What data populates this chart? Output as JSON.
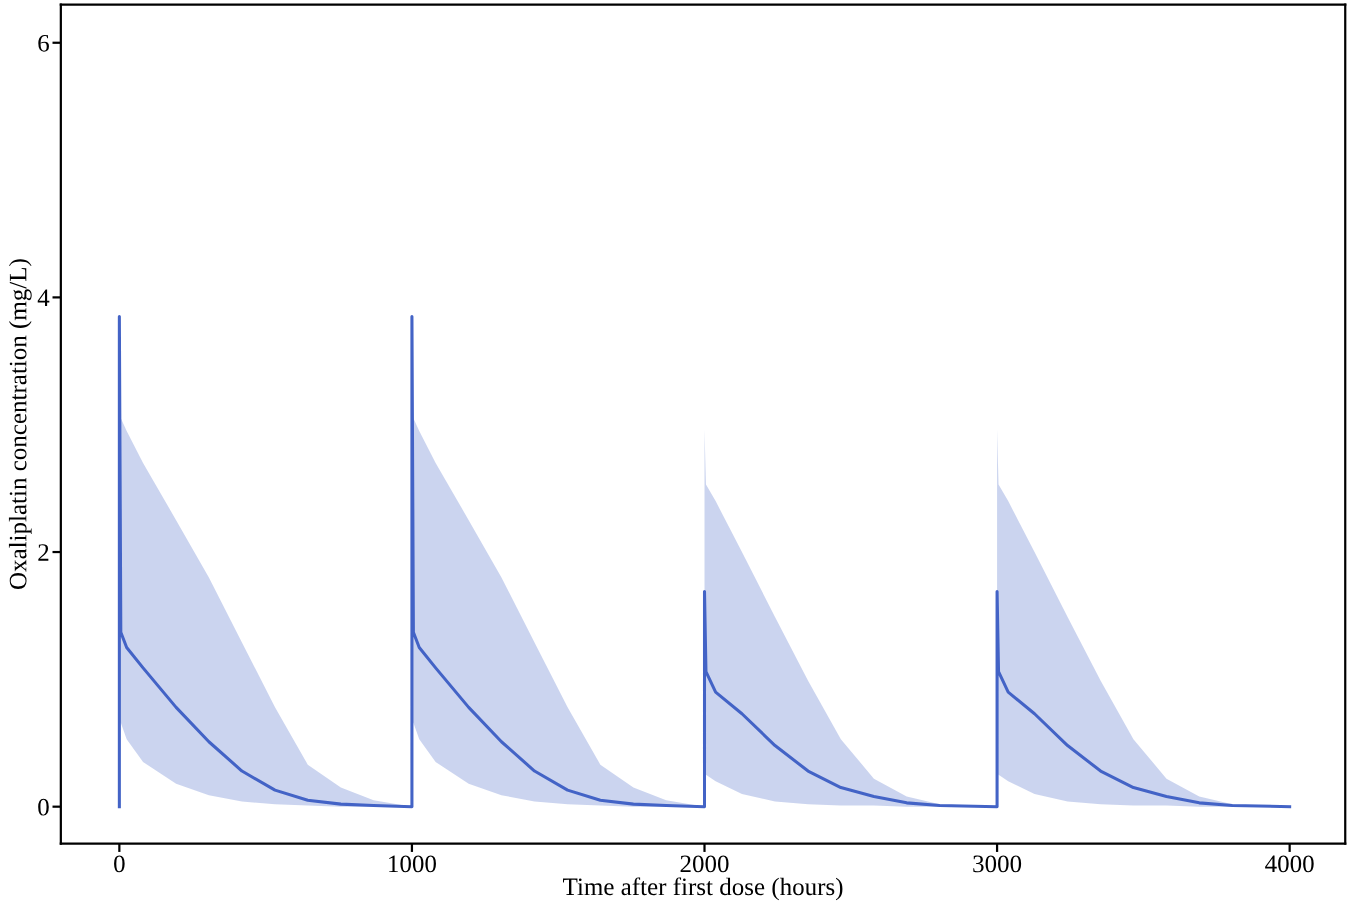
{
  "chart_data": {
    "type": "line",
    "xlabel": "Time after first dose (hours)",
    "ylabel": "Oxaliplatin concentration (mg/L)",
    "xlim": [
      -200,
      4190
    ],
    "ylim": [
      -0.29,
      6.3
    ],
    "xticks": [
      0,
      1000,
      2000,
      3000,
      4000
    ],
    "yticks": [
      0,
      2,
      4,
      6
    ],
    "grid": false,
    "legend": false,
    "marker": "none",
    "line_style": "solid",
    "series": [
      {
        "color": "#4363c6",
        "x": [
          0,
          0,
          5,
          25,
          81,
          194,
          306,
          419,
          532,
          644,
          757,
          869,
          1000,
          1000,
          1005,
          1025,
          1081,
          1194,
          1306,
          1419,
          1532,
          1644,
          1757,
          1869,
          2000,
          2000,
          2005,
          2038,
          2128,
          2241,
          2354,
          2466,
          2579,
          2691,
          2804,
          3000,
          3000,
          3005,
          3038,
          3128,
          3241,
          3354,
          3466,
          3579,
          3691,
          3804,
          4000
        ],
        "values": [
          0,
          3.85,
          1.37,
          1.25,
          1.09,
          0.78,
          0.51,
          0.28,
          0.13,
          0.05,
          0.02,
          0.01,
          0,
          3.85,
          1.37,
          1.25,
          1.09,
          0.78,
          0.51,
          0.28,
          0.13,
          0.05,
          0.02,
          0.01,
          0,
          1.69,
          1.06,
          0.9,
          0.73,
          0.48,
          0.28,
          0.15,
          0.08,
          0.03,
          0.01,
          0,
          1.69,
          1.06,
          0.9,
          0.73,
          0.48,
          0.28,
          0.15,
          0.08,
          0.03,
          0.01,
          0
        ],
        "upper": [
          0,
          3.06,
          3.05,
          2.95,
          2.7,
          2.25,
          1.8,
          1.29,
          0.78,
          0.33,
          0.15,
          0.05,
          0,
          3.06,
          3.05,
          2.95,
          2.7,
          2.25,
          1.8,
          1.29,
          0.78,
          0.33,
          0.15,
          0.05,
          0,
          2.96,
          2.53,
          2.4,
          2.0,
          1.49,
          0.99,
          0.53,
          0.22,
          0.08,
          0.02,
          0,
          2.96,
          2.53,
          2.4,
          2.0,
          1.49,
          0.99,
          0.53,
          0.22,
          0.08,
          0.02,
          0
        ],
        "lower": [
          0,
          0.66,
          0.66,
          0.53,
          0.35,
          0.18,
          0.09,
          0.04,
          0.02,
          0.01,
          0,
          0,
          0,
          0.66,
          0.66,
          0.53,
          0.35,
          0.18,
          0.09,
          0.04,
          0.02,
          0.01,
          0,
          0,
          0,
          0.25,
          0.25,
          0.2,
          0.1,
          0.04,
          0.02,
          0.01,
          0.01,
          0,
          0,
          0,
          0.25,
          0.25,
          0.2,
          0.1,
          0.04,
          0.02,
          0.01,
          0.01,
          0,
          0,
          0
        ]
      }
    ]
  }
}
